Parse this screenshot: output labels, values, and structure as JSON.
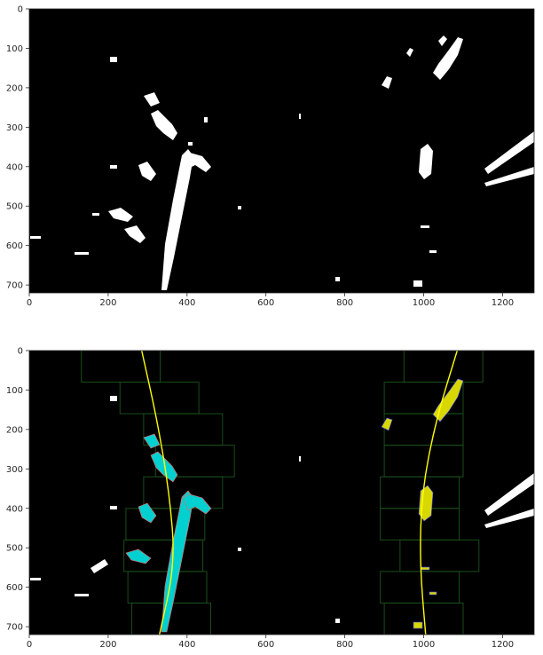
{
  "figure": {
    "background": "#ffffff",
    "axes_color": "#262626"
  },
  "chart_data": [
    {
      "type": "image",
      "title": "",
      "xlabel": "",
      "ylabel": "",
      "xlim": [
        0,
        1280
      ],
      "ylim": [
        720,
        0
      ],
      "x_ticks": [
        0,
        200,
        400,
        600,
        800,
        1000,
        1200
      ],
      "y_ticks": [
        0,
        100,
        200,
        300,
        400,
        500,
        600,
        700
      ],
      "content": "binary_lane_mask",
      "colors": {
        "background": "#000000",
        "foreground": "#ffffff"
      }
    },
    {
      "type": "image",
      "title": "",
      "xlabel": "",
      "ylabel": "",
      "xlim": [
        0,
        1280
      ],
      "ylim": [
        720,
        0
      ],
      "x_ticks": [
        0,
        200,
        400,
        600,
        800,
        1000,
        1200
      ],
      "y_ticks": [
        0,
        100,
        200,
        300,
        400,
        500,
        600,
        700
      ],
      "content": "sliding_window_lane_fit",
      "colors": {
        "background": "#000000",
        "foreground": "#ffffff",
        "left_pixels": "#00d0d0",
        "right_pixels": "#d8d800",
        "fit_line": "#ffff00",
        "window_box": "#1a4d1a"
      },
      "left_fit_x_at_y": {
        "0": 285,
        "180": 325,
        "360": 355,
        "540": 370,
        "720": 330
      },
      "right_fit_x_at_y": {
        "0": 1085,
        "180": 1030,
        "360": 995,
        "540": 990,
        "720": 1005
      },
      "left_windows_center_x": [
        232,
        330,
        390,
        420,
        390,
        345,
        340,
        350,
        360
      ],
      "right_windows_center_x": [
        1050,
        1000,
        1000,
        1000,
        990,
        990,
        1040,
        990,
        1000
      ]
    }
  ]
}
